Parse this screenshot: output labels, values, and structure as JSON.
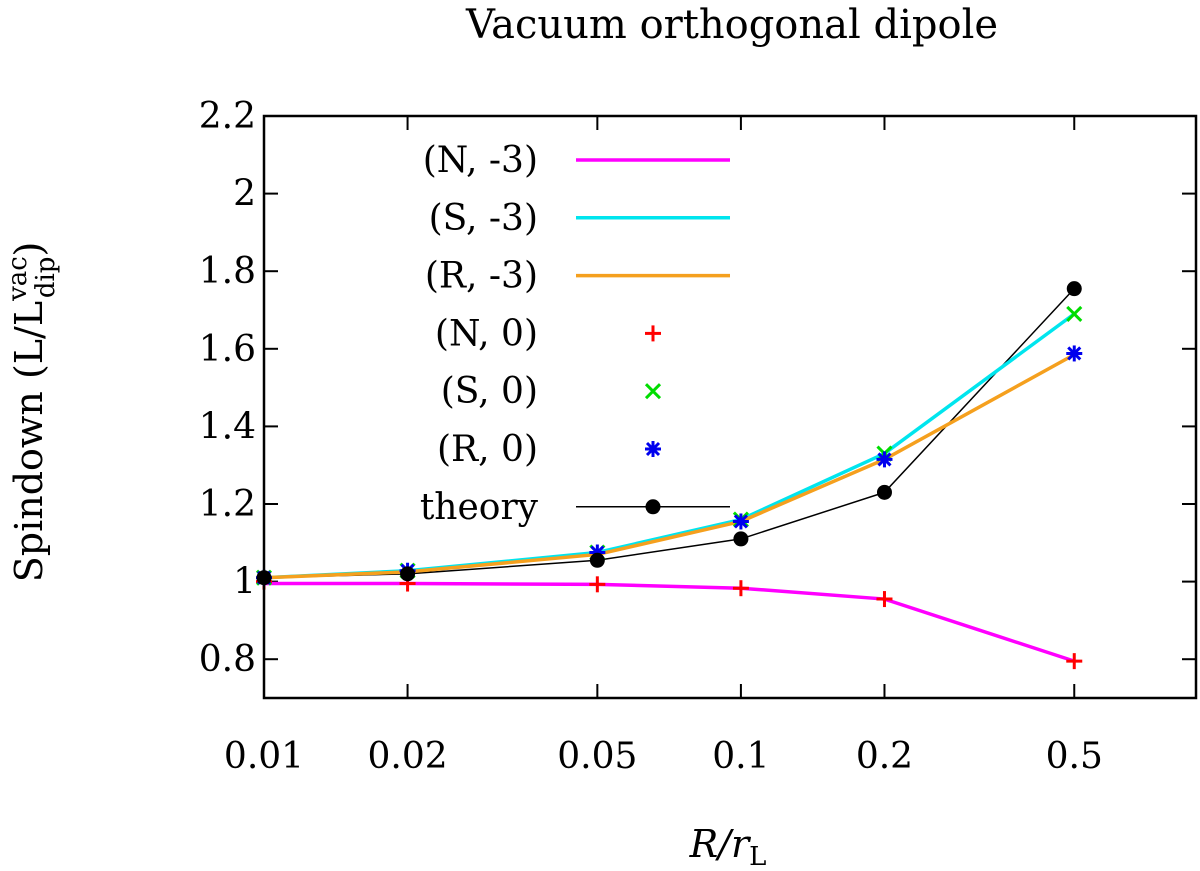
{
  "chart_data": {
    "type": "line",
    "title": "Vacuum orthogonal dipole",
    "xlabel": {
      "main": "R/r",
      "sub": "L"
    },
    "ylabel": {
      "main": "Spindown (L/L",
      "sub": "dip",
      "sup": "vac",
      "tail": ")"
    },
    "x_scale": "log",
    "xlim": [
      0.01,
      0.9
    ],
    "ylim": [
      0.7,
      2.2
    ],
    "x_ticks": [
      0.01,
      0.02,
      0.05,
      0.1,
      0.2,
      0.5
    ],
    "x_tick_labels": [
      "0.01",
      "0.02",
      "0.05",
      "0.1",
      "0.2",
      "0.5"
    ],
    "y_ticks": [
      0.8,
      1,
      1.2,
      1.4,
      1.6,
      1.8,
      2,
      2.2
    ],
    "y_tick_labels": [
      "0.8",
      "1",
      "1.2",
      "1.4",
      "1.6",
      "1.8",
      "2",
      "2.2"
    ],
    "grid": false,
    "legend_position": "top-left",
    "x": [
      0.01,
      0.02,
      0.05,
      0.1,
      0.2,
      0.5
    ],
    "series": [
      {
        "name": "(N, -3)",
        "style": "line",
        "color": "#ff00ff",
        "values": [
          0.995,
          0.995,
          0.993,
          0.983,
          0.955,
          0.795
        ]
      },
      {
        "name": "(S, -3)",
        "style": "line",
        "color": "#00e5ee",
        "values": [
          1.01,
          1.028,
          1.075,
          1.16,
          1.33,
          1.69
        ]
      },
      {
        "name": "(R, -3)",
        "style": "line",
        "color": "#f5a01e",
        "values": [
          1.01,
          1.025,
          1.07,
          1.155,
          1.315,
          1.585
        ]
      },
      {
        "name": "(N, 0)",
        "style": "marker",
        "marker": "plus",
        "color": "#ff0000",
        "values": [
          1.0,
          0.995,
          0.993,
          0.983,
          0.955,
          0.795
        ]
      },
      {
        "name": "(S, 0)",
        "style": "marker",
        "marker": "cross",
        "color": "#00dd00",
        "values": [
          1.01,
          1.028,
          1.075,
          1.16,
          1.33,
          1.69
        ]
      },
      {
        "name": "(R, 0)",
        "style": "marker",
        "marker": "star",
        "color": "#0000ee",
        "values": [
          1.01,
          1.028,
          1.075,
          1.155,
          1.315,
          1.588
        ]
      },
      {
        "name": "theory",
        "style": "linemarker",
        "marker": "circle",
        "color": "#000000",
        "values": [
          1.01,
          1.02,
          1.055,
          1.11,
          1.23,
          1.755
        ]
      }
    ]
  }
}
